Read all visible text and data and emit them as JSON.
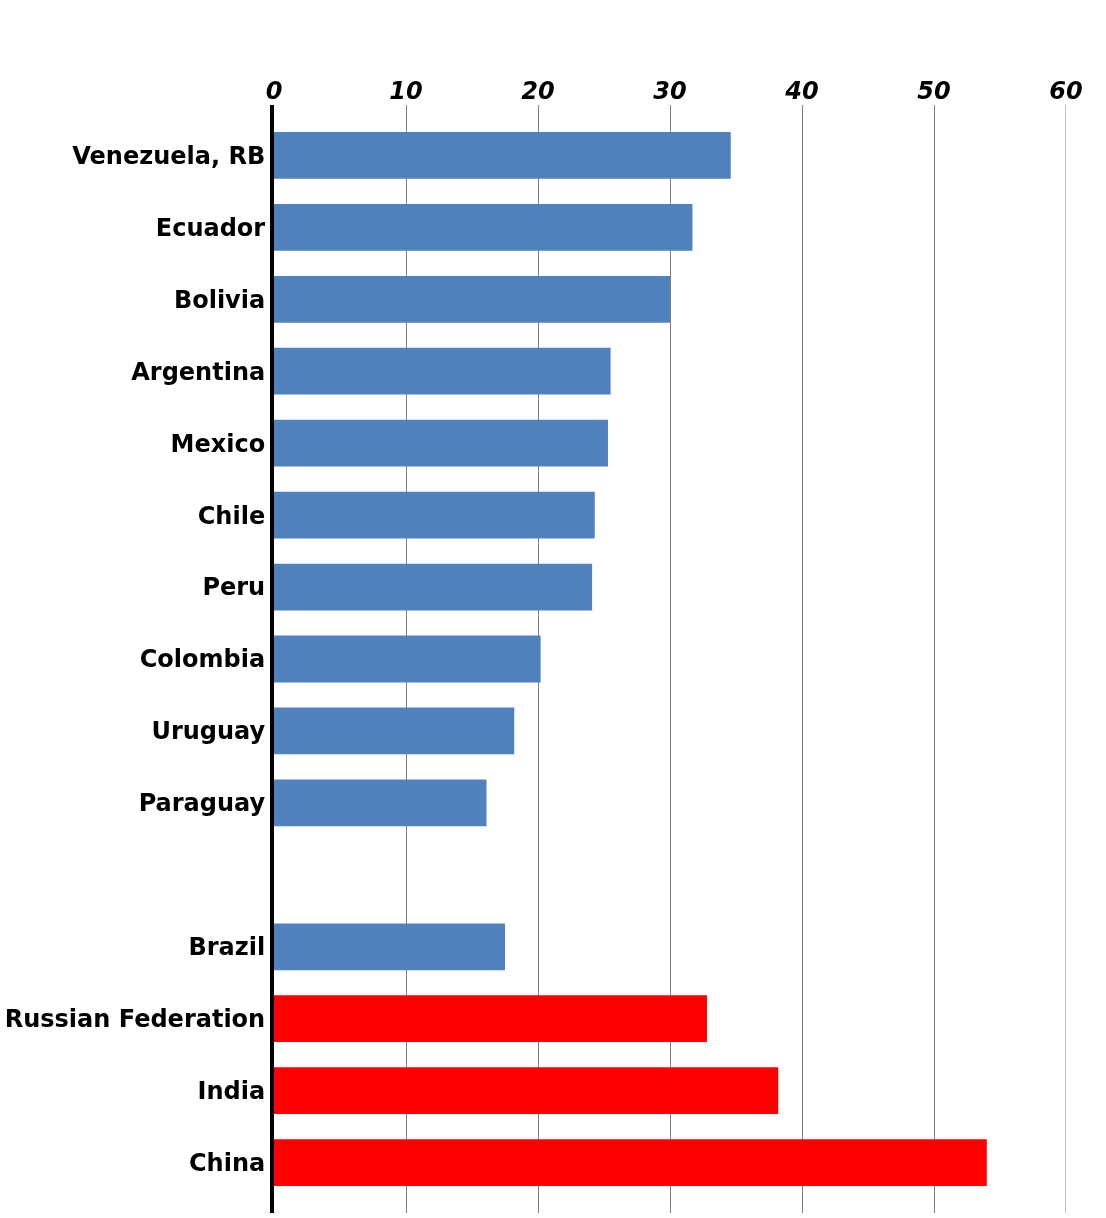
{
  "chart_data": {
    "type": "bar",
    "orientation": "horizontal",
    "categories": [
      "Venezuela, RB",
      "Ecuador",
      "Bolivia",
      "Argentina",
      "Mexico",
      "Chile",
      "Peru",
      "Colombia",
      "Uruguay",
      "Paraguay",
      null,
      "Brazil",
      "Russian Federation",
      "India",
      "China"
    ],
    "values": [
      34.6,
      31.7,
      30.0,
      25.5,
      25.3,
      24.3,
      24.1,
      20.2,
      18.2,
      16.1,
      null,
      17.5,
      32.8,
      38.2,
      54.0
    ],
    "colors": [
      "#4f81bd",
      "#4f81bd",
      "#4f81bd",
      "#4f81bd",
      "#4f81bd",
      "#4f81bd",
      "#4f81bd",
      "#4f81bd",
      "#4f81bd",
      "#4f81bd",
      "#4f81bd",
      "#4f81bd",
      "#ff0000",
      "#ff0000",
      "#ff0000"
    ],
    "xlim": [
      0,
      60
    ],
    "xticks": [
      0,
      10,
      20,
      30,
      40,
      50,
      60
    ],
    "grid": "x",
    "legend": false
  }
}
